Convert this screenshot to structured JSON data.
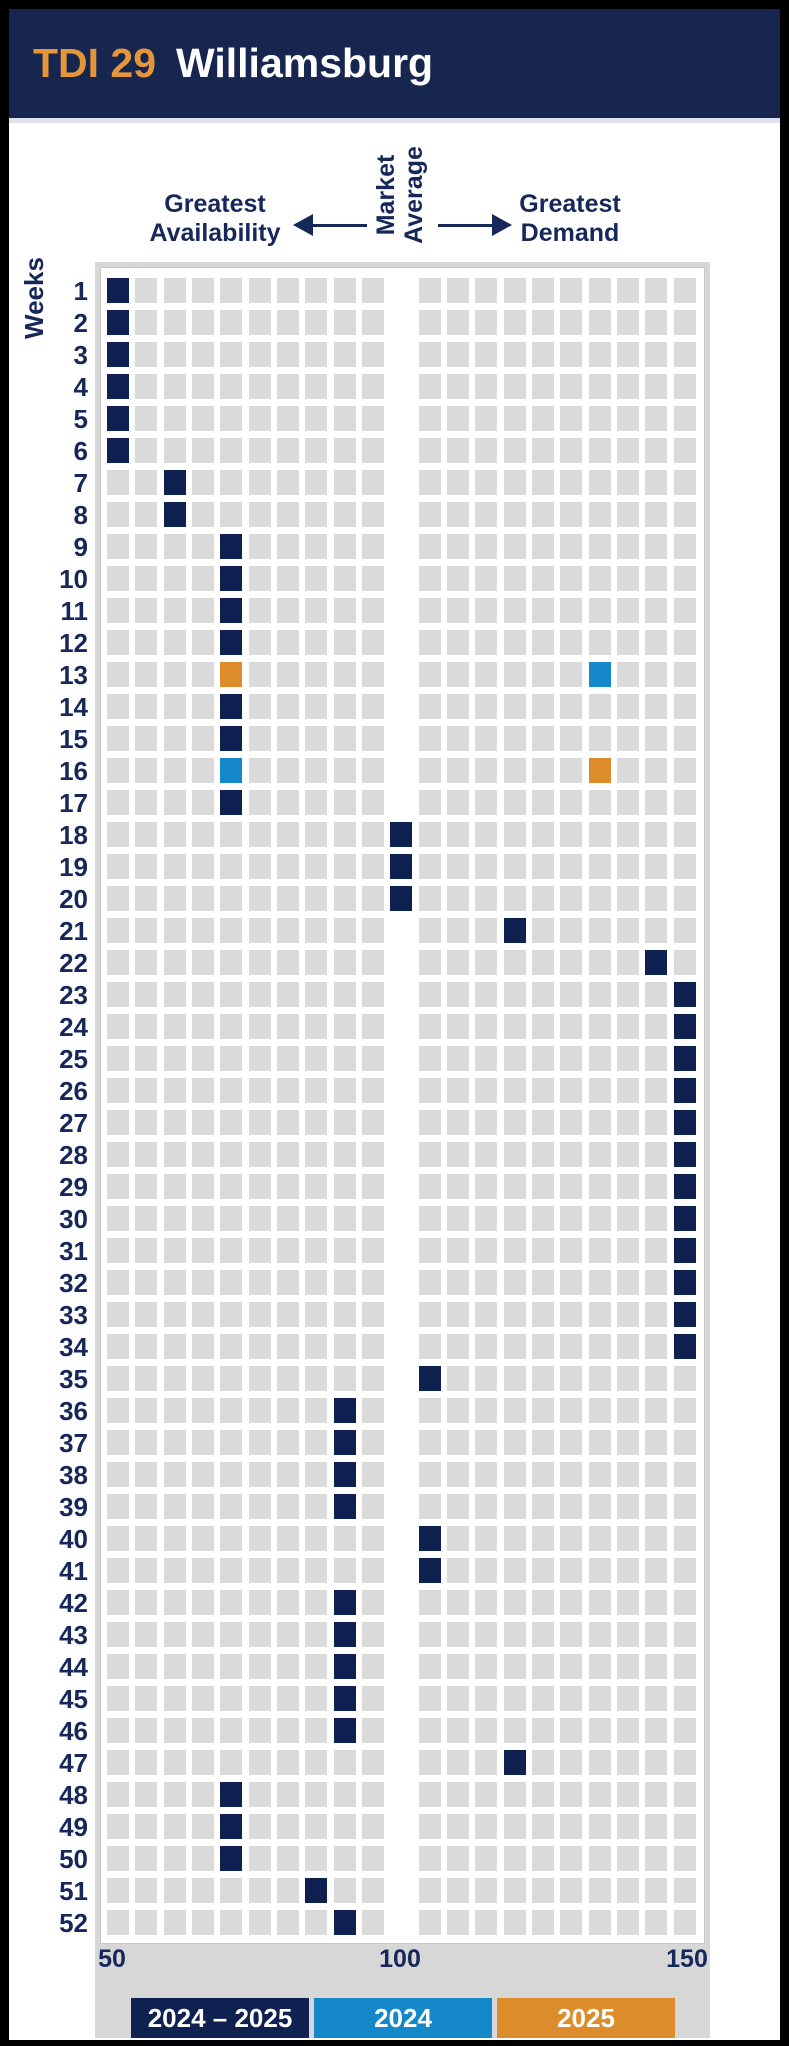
{
  "header": {
    "tag": "TDI 29",
    "title": "Williamsburg"
  },
  "annotations": {
    "left_line1": "Greatest",
    "left_line2": "Availability",
    "center_line1": "Market",
    "center_line2": "Average",
    "right_line1": "Greatest",
    "right_line2": "Demand"
  },
  "y_axis": {
    "label": "Weeks"
  },
  "x_axis": {
    "ticks": [
      "50",
      "100",
      "150"
    ]
  },
  "legend": [
    {
      "label": "2024 – 2025",
      "color": "#0e2150"
    },
    {
      "label": "2024",
      "color": "#1488c9"
    },
    {
      "label": "2025",
      "color": "#dd8c2b"
    }
  ],
  "colors": {
    "header_background": "#17264f",
    "header_tag": "#e5953a",
    "header_title": "#ffffff",
    "label_navy": "#16275a",
    "empty_cell_gray": "#dadada",
    "panel_gray": "#d7d7d7",
    "market_average_column": "#ffffff"
  },
  "chart_data": {
    "type": "heatmap",
    "title": "TDI 29 Williamsburg",
    "ylabel": "Weeks",
    "weeks": 52,
    "x_range": [
      50,
      150
    ],
    "x_bin_width": 5,
    "x_ticks": [
      50,
      100,
      150
    ],
    "columns": 21,
    "market_average_value": 100,
    "market_average_column_index": 10,
    "annotations": [
      "Greatest Availability",
      "Market Average",
      "Greatest Demand"
    ],
    "legend": [
      "2024 – 2025",
      "2024",
      "2025"
    ],
    "points": [
      {
        "week": 1,
        "value": 50,
        "series": "2024 – 2025"
      },
      {
        "week": 2,
        "value": 50,
        "series": "2024 – 2025"
      },
      {
        "week": 3,
        "value": 50,
        "series": "2024 – 2025"
      },
      {
        "week": 4,
        "value": 50,
        "series": "2024 – 2025"
      },
      {
        "week": 5,
        "value": 50,
        "series": "2024 – 2025"
      },
      {
        "week": 6,
        "value": 50,
        "series": "2024 – 2025"
      },
      {
        "week": 7,
        "value": 60,
        "series": "2024 – 2025"
      },
      {
        "week": 8,
        "value": 60,
        "series": "2024 – 2025"
      },
      {
        "week": 9,
        "value": 70,
        "series": "2024 – 2025"
      },
      {
        "week": 10,
        "value": 70,
        "series": "2024 – 2025"
      },
      {
        "week": 11,
        "value": 70,
        "series": "2024 – 2025"
      },
      {
        "week": 12,
        "value": 70,
        "series": "2024 – 2025"
      },
      {
        "week": 13,
        "value": 70,
        "series": "2025"
      },
      {
        "week": 13,
        "value": 135,
        "series": "2024"
      },
      {
        "week": 14,
        "value": 70,
        "series": "2024 – 2025"
      },
      {
        "week": 15,
        "value": 70,
        "series": "2024 – 2025"
      },
      {
        "week": 16,
        "value": 70,
        "series": "2024"
      },
      {
        "week": 16,
        "value": 135,
        "series": "2025"
      },
      {
        "week": 17,
        "value": 70,
        "series": "2024 – 2025"
      },
      {
        "week": 18,
        "value": 100,
        "series": "2024 – 2025"
      },
      {
        "week": 19,
        "value": 100,
        "series": "2024 – 2025"
      },
      {
        "week": 20,
        "value": 100,
        "series": "2024 – 2025"
      },
      {
        "week": 21,
        "value": 120,
        "series": "2024 – 2025"
      },
      {
        "week": 22,
        "value": 145,
        "series": "2024 – 2025"
      },
      {
        "week": 23,
        "value": 150,
        "series": "2024 – 2025"
      },
      {
        "week": 24,
        "value": 150,
        "series": "2024 – 2025"
      },
      {
        "week": 25,
        "value": 150,
        "series": "2024 – 2025"
      },
      {
        "week": 26,
        "value": 150,
        "series": "2024 – 2025"
      },
      {
        "week": 27,
        "value": 150,
        "series": "2024 – 2025"
      },
      {
        "week": 28,
        "value": 150,
        "series": "2024 – 2025"
      },
      {
        "week": 29,
        "value": 150,
        "series": "2024 – 2025"
      },
      {
        "week": 30,
        "value": 150,
        "series": "2024 – 2025"
      },
      {
        "week": 31,
        "value": 150,
        "series": "2024 – 2025"
      },
      {
        "week": 32,
        "value": 150,
        "series": "2024 – 2025"
      },
      {
        "week": 33,
        "value": 150,
        "series": "2024 – 2025"
      },
      {
        "week": 34,
        "value": 150,
        "series": "2024 – 2025"
      },
      {
        "week": 35,
        "value": 105,
        "series": "2024 – 2025"
      },
      {
        "week": 36,
        "value": 90,
        "series": "2024 – 2025"
      },
      {
        "week": 37,
        "value": 90,
        "series": "2024 – 2025"
      },
      {
        "week": 38,
        "value": 90,
        "series": "2024 – 2025"
      },
      {
        "week": 39,
        "value": 90,
        "series": "2024 – 2025"
      },
      {
        "week": 40,
        "value": 105,
        "series": "2024 – 2025"
      },
      {
        "week": 41,
        "value": 105,
        "series": "2024 – 2025"
      },
      {
        "week": 42,
        "value": 90,
        "series": "2024 – 2025"
      },
      {
        "week": 43,
        "value": 90,
        "series": "2024 – 2025"
      },
      {
        "week": 44,
        "value": 90,
        "series": "2024 – 2025"
      },
      {
        "week": 45,
        "value": 90,
        "series": "2024 – 2025"
      },
      {
        "week": 46,
        "value": 90,
        "series": "2024 – 2025"
      },
      {
        "week": 47,
        "value": 120,
        "series": "2024 – 2025"
      },
      {
        "week": 48,
        "value": 70,
        "series": "2024 – 2025"
      },
      {
        "week": 49,
        "value": 70,
        "series": "2024 – 2025"
      },
      {
        "week": 50,
        "value": 70,
        "series": "2024 – 2025"
      },
      {
        "week": 51,
        "value": 85,
        "series": "2024 – 2025"
      },
      {
        "week": 52,
        "value": 90,
        "series": "2024 – 2025"
      }
    ]
  }
}
